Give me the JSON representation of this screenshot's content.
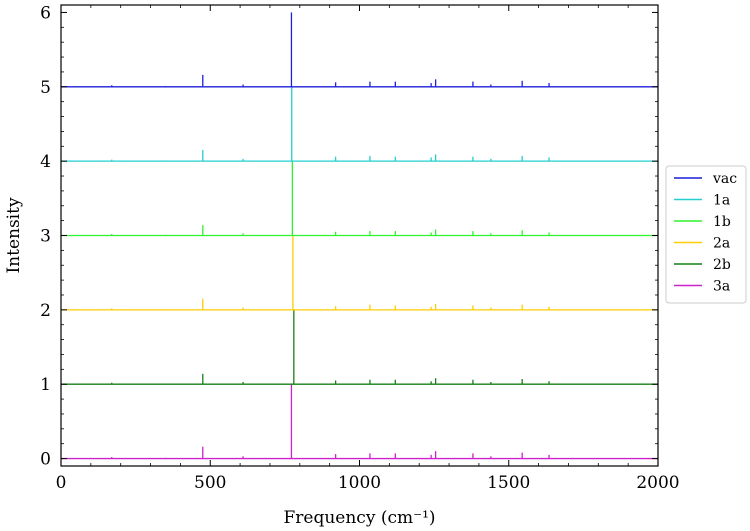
{
  "chart_data": {
    "type": "line",
    "xlabel": "Frequency (cm⁻¹)",
    "ylabel": "Intensity",
    "xlim": [
      0,
      2000
    ],
    "ylim": [
      -0.1,
      6.1
    ],
    "xticks": [
      "0",
      "500",
      "1000",
      "1500",
      "2000"
    ],
    "yticks": [
      "0",
      "1",
      "2",
      "3",
      "4",
      "5",
      "6"
    ],
    "legend_position": "right-outside",
    "grid": false,
    "series": [
      {
        "name": "vac",
        "color": "#1f1fdc",
        "offset": 5,
        "peaks": [
          [
            170,
            0.02
          ],
          [
            350,
            0.01
          ],
          [
            475,
            0.16
          ],
          [
            610,
            0.03
          ],
          [
            772,
            1.0
          ],
          [
            920,
            0.06
          ],
          [
            1035,
            0.07
          ],
          [
            1120,
            0.07
          ],
          [
            1240,
            0.05
          ],
          [
            1255,
            0.1
          ],
          [
            1380,
            0.07
          ],
          [
            1440,
            0.03
          ],
          [
            1545,
            0.08
          ],
          [
            1635,
            0.05
          ]
        ]
      },
      {
        "name": "1a",
        "color": "#22cfcf",
        "offset": 4,
        "peaks": [
          [
            170,
            0.02
          ],
          [
            350,
            0.01
          ],
          [
            475,
            0.15
          ],
          [
            610,
            0.03
          ],
          [
            773,
            1.0
          ],
          [
            920,
            0.06
          ],
          [
            1035,
            0.07
          ],
          [
            1120,
            0.06
          ],
          [
            1240,
            0.05
          ],
          [
            1255,
            0.09
          ],
          [
            1380,
            0.06
          ],
          [
            1440,
            0.03
          ],
          [
            1545,
            0.07
          ],
          [
            1635,
            0.05
          ]
        ]
      },
      {
        "name": "1b",
        "color": "#2ff22f",
        "offset": 3,
        "peaks": [
          [
            170,
            0.02
          ],
          [
            350,
            0.01
          ],
          [
            475,
            0.14
          ],
          [
            610,
            0.03
          ],
          [
            775,
            1.0
          ],
          [
            920,
            0.05
          ],
          [
            1035,
            0.06
          ],
          [
            1120,
            0.06
          ],
          [
            1240,
            0.04
          ],
          [
            1255,
            0.08
          ],
          [
            1380,
            0.06
          ],
          [
            1440,
            0.03
          ],
          [
            1545,
            0.07
          ],
          [
            1635,
            0.04
          ]
        ]
      },
      {
        "name": "2a",
        "color": "#ffcc00",
        "offset": 2,
        "peaks": [
          [
            170,
            0.02
          ],
          [
            350,
            0.01
          ],
          [
            475,
            0.15
          ],
          [
            610,
            0.03
          ],
          [
            777,
            1.0
          ],
          [
            920,
            0.05
          ],
          [
            1035,
            0.07
          ],
          [
            1120,
            0.06
          ],
          [
            1240,
            0.04
          ],
          [
            1255,
            0.08
          ],
          [
            1380,
            0.06
          ],
          [
            1440,
            0.03
          ],
          [
            1545,
            0.07
          ],
          [
            1635,
            0.04
          ]
        ]
      },
      {
        "name": "2b",
        "color": "#167f16",
        "offset": 1,
        "peaks": [
          [
            170,
            0.02
          ],
          [
            350,
            0.01
          ],
          [
            475,
            0.14
          ],
          [
            610,
            0.03
          ],
          [
            780,
            1.0
          ],
          [
            920,
            0.05
          ],
          [
            1035,
            0.06
          ],
          [
            1120,
            0.06
          ],
          [
            1240,
            0.04
          ],
          [
            1255,
            0.08
          ],
          [
            1380,
            0.06
          ],
          [
            1440,
            0.03
          ],
          [
            1545,
            0.07
          ],
          [
            1635,
            0.04
          ]
        ]
      },
      {
        "name": "3a",
        "color": "#cc22cc",
        "offset": 0,
        "peaks": [
          [
            170,
            0.02
          ],
          [
            350,
            0.01
          ],
          [
            475,
            0.16
          ],
          [
            610,
            0.03
          ],
          [
            772,
            1.0
          ],
          [
            920,
            0.06
          ],
          [
            1035,
            0.07
          ],
          [
            1120,
            0.07
          ],
          [
            1240,
            0.05
          ],
          [
            1255,
            0.1
          ],
          [
            1380,
            0.07
          ],
          [
            1440,
            0.03
          ],
          [
            1545,
            0.08
          ],
          [
            1635,
            0.05
          ]
        ]
      }
    ]
  }
}
